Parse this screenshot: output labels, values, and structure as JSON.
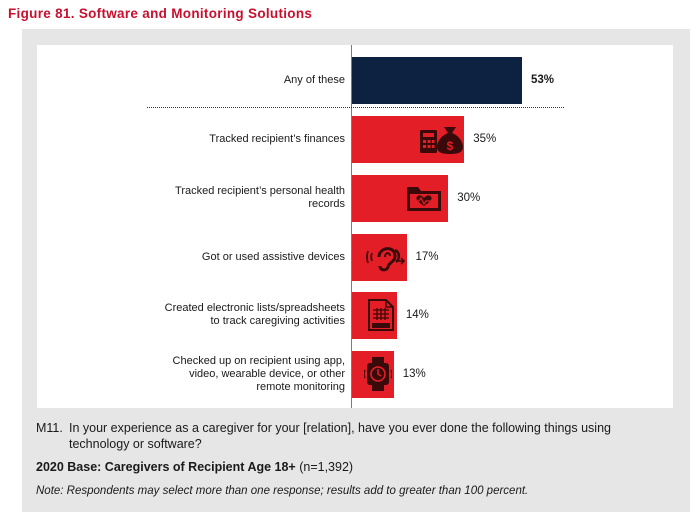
{
  "figure_title": "Figure 81. Software and Monitoring Solutions",
  "colors": {
    "accent": "#c8102e",
    "total_bar": "#0c2240",
    "bar": "#e41e26",
    "icon": "#3a0a0a"
  },
  "chart_data": {
    "type": "bar",
    "orientation": "horizontal",
    "categories": [
      "Any of these",
      "Tracked recipient’s finances",
      "Tracked recipient’s personal health records",
      "Got or used assistive devices",
      "Created electronic lists/spreadsheets to track caregiving activities",
      "Checked up on recipient using app, video, wearable device, or other remote monitoring"
    ],
    "category_lines": [
      [
        "Any of these"
      ],
      [
        "Tracked recipient’s finances"
      ],
      [
        "Tracked recipient’s personal health",
        "records"
      ],
      [
        "Got or used assistive devices"
      ],
      [
        "Created electronic lists/spreadsheets",
        "to track caregiving activities"
      ],
      [
        "Checked up on recipient using app,",
        "video, wearable device, or other",
        "remote monitoring"
      ]
    ],
    "values": [
      53,
      35,
      30,
      17,
      14,
      13
    ],
    "value_labels": [
      "53%",
      "35%",
      "30%",
      "17%",
      "14%",
      "13%"
    ],
    "icons": [
      "",
      "money-bag-calculator-icon",
      "health-folder-icon",
      "ear-hearing-aid-icon",
      "spreadsheet-icon",
      "smartwatch-icon"
    ],
    "xlim": [
      0,
      100
    ],
    "grid": false,
    "legend": "none"
  },
  "question": {
    "number": "M11.",
    "text": "In your experience as a caregiver for your [relation], have you ever done the following things using technology or software?"
  },
  "base": {
    "label": "2020 Base: Caregivers of Recipient Age 18+",
    "n": "(n=1,392)"
  },
  "note": "Note: Respondents may select more than one response; results add to greater than 100 percent."
}
